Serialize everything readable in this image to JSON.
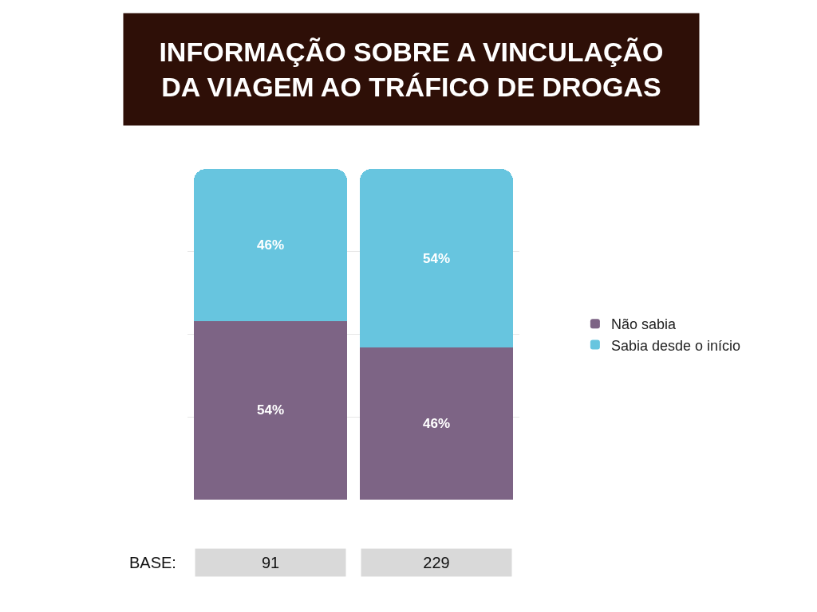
{
  "chart_data": {
    "type": "bar",
    "title": "INFORMAÇÃO SOBRE A VINCULAÇÃO\nDA VIAGEM AO TRÁFICO DE DROGAS",
    "categories": [
      null,
      null
    ],
    "stacked": true,
    "series": [
      {
        "name": "Não sabia",
        "color": "#7d6485",
        "values": [
          54,
          46
        ],
        "value_labels": [
          "54%",
          "46%"
        ]
      },
      {
        "name": "Sabia desde o início",
        "color": "#67c5df",
        "values": [
          46,
          54
        ],
        "value_labels": [
          "46%",
          "54%"
        ]
      }
    ],
    "ylim": [
      0,
      100
    ],
    "yticks": [
      {
        "value": 25,
        "label": null
      },
      {
        "value": 50,
        "label": null
      },
      {
        "value": 75,
        "label": null
      }
    ],
    "grid": "y",
    "legend": "right",
    "annotations": [
      "BASE:",
      "91",
      "229"
    ]
  }
}
